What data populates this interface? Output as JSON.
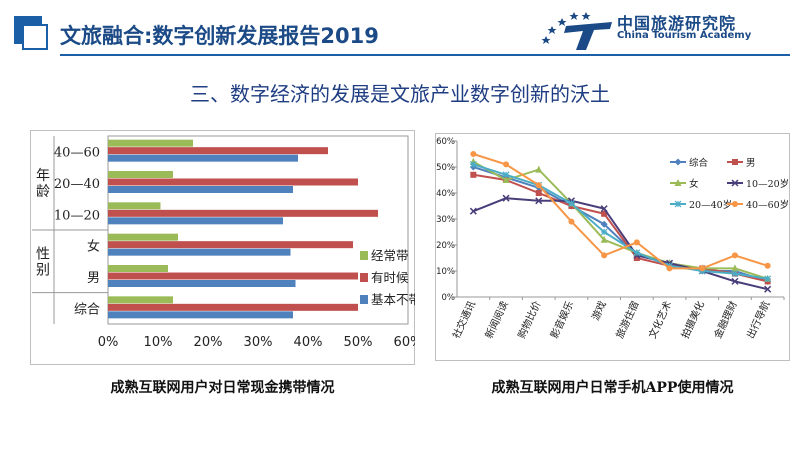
{
  "header": {
    "title": "文旅融合:数字创新发展报告2019",
    "org_cn": "中国旅游研究院",
    "org_en": "China Tourism Academy"
  },
  "subtitle": "三、数字经济的发展是文旅产业数字创新的沃土",
  "colors": {
    "green": "#9bbb59",
    "red": "#c0504d",
    "blue": "#4f81bd"
  },
  "chart_data": [
    {
      "type": "bar",
      "orientation": "horizontal",
      "caption": "成熟互联网用户对日常现金携带情况",
      "categories": [
        "40—60",
        "20—40",
        "10—20",
        "女",
        "男",
        "综合"
      ],
      "groups": [
        {
          "label": "年龄",
          "categories": [
            "40—60",
            "20—40",
            "10—20"
          ]
        },
        {
          "label": "性别",
          "categories": [
            "女",
            "男"
          ]
        }
      ],
      "series": [
        {
          "name": "经常带",
          "color": "#9bbb59",
          "values": [
            17,
            13,
            10.5,
            14,
            12,
            13
          ]
        },
        {
          "name": "有时候",
          "color": "#c0504d",
          "values": [
            44,
            50,
            54,
            49,
            50,
            50
          ]
        },
        {
          "name": "基本不带",
          "color": "#4f81bd",
          "values": [
            38,
            37,
            35,
            36.5,
            37.5,
            37
          ]
        }
      ],
      "xticks": [
        "0%",
        "10%",
        "20%",
        "30%",
        "40%",
        "50%",
        "60%"
      ],
      "xlim": [
        0,
        60
      ],
      "legend_position": "right"
    },
    {
      "type": "line",
      "caption": "成熟互联网用户日常手机APP使用情况",
      "categories": [
        "社交通讯",
        "新闻阅读",
        "购物比价",
        "影音娱乐",
        "游戏",
        "旅游住宿",
        "文化艺术",
        "拍摄美化",
        "金融理财",
        "出行导航"
      ],
      "series": [
        {
          "name": "综合",
          "color": "#4f81bd",
          "marker": "diamond",
          "values": [
            50,
            46,
            42,
            35,
            28,
            16,
            13,
            10,
            10,
            6
          ]
        },
        {
          "name": "男",
          "color": "#c0504d",
          "marker": "square",
          "values": [
            47,
            45,
            40,
            35,
            32,
            15,
            12,
            11,
            9,
            6
          ]
        },
        {
          "name": "女",
          "color": "#9bbb59",
          "marker": "triangle",
          "values": [
            52,
            45,
            49,
            36,
            22,
            17,
            13,
            11,
            11,
            7
          ]
        },
        {
          "name": "10—20岁",
          "color": "#4a3e7a",
          "marker": "x",
          "values": [
            33,
            38,
            37,
            37,
            34,
            16,
            13,
            10,
            6,
            3
          ]
        },
        {
          "name": "20—40岁",
          "color": "#4bacc6",
          "marker": "star",
          "values": [
            51,
            47,
            43,
            36,
            25,
            17,
            12,
            10,
            9,
            7
          ]
        },
        {
          "name": "40—60岁",
          "color": "#f79646",
          "marker": "circle",
          "values": [
            55,
            51,
            43,
            29,
            16,
            21,
            11,
            11,
            16,
            12
          ]
        }
      ],
      "yticks": [
        "0%",
        "10%",
        "20%",
        "30%",
        "40%",
        "50%",
        "60%"
      ],
      "ylim": [
        0,
        60
      ],
      "legend_position": "inside-right"
    }
  ]
}
